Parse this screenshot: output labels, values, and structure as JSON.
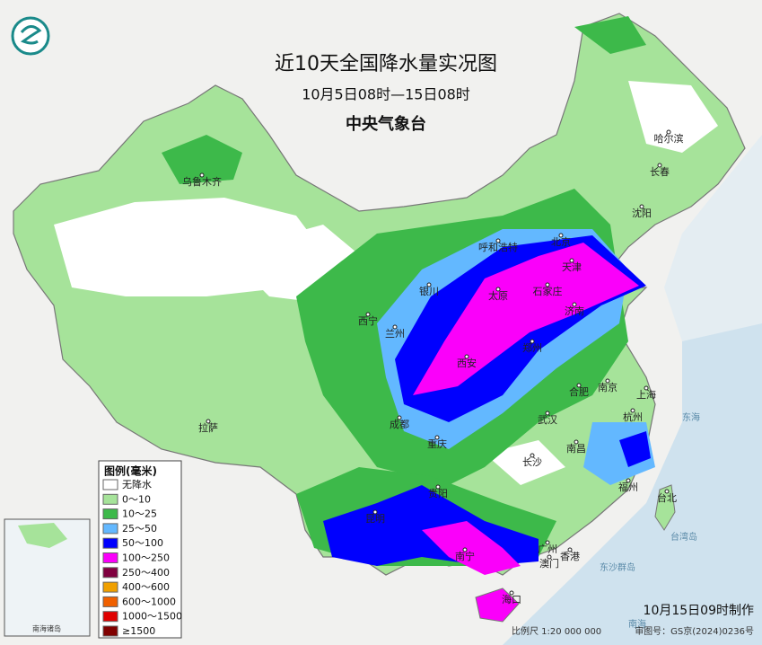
{
  "header": {
    "title": "近10天全国降水量实况图",
    "subtitle": "10月5日08时—15日08时",
    "agency": "中央气象台"
  },
  "legend": {
    "title": "图例(毫米)",
    "items": [
      {
        "label": "无降水",
        "color": "#ffffff"
      },
      {
        "label": "0～10",
        "color": "#a6e39a"
      },
      {
        "label": "10～25",
        "color": "#3db94a"
      },
      {
        "label": "25～50",
        "color": "#63b8ff"
      },
      {
        "label": "50～100",
        "color": "#0000fe"
      },
      {
        "label": "100～250",
        "color": "#fa00fa"
      },
      {
        "label": "250～400",
        "color": "#800040"
      },
      {
        "label": "400～600",
        "color": "#f0a000"
      },
      {
        "label": "600～1000",
        "color": "#f06000"
      },
      {
        "label": "1000～1500",
        "color": "#e00000"
      },
      {
        "label": "≥1500",
        "color": "#800000"
      }
    ]
  },
  "cities": [
    "乌鲁木齐",
    "哈尔滨",
    "长春",
    "沈阳",
    "呼和浩特",
    "北京",
    "天津",
    "银川",
    "太原",
    "石家庄",
    "济南",
    "西宁",
    "兰州",
    "郑州",
    "西安",
    "合肥",
    "南京",
    "上海",
    "成都",
    "武汉",
    "杭州",
    "拉萨",
    "重庆",
    "长沙",
    "南昌",
    "福州",
    "贵阳",
    "台北",
    "昆明",
    "南宁",
    "广州",
    "香港",
    "澳门",
    "海口"
  ],
  "seas": [
    "东海",
    "台湾岛",
    "东沙群岛",
    "南海"
  ],
  "inset": {
    "label": "南海诸岛"
  },
  "footer": {
    "issued": "10月15日09时制作",
    "scale": "比例尺 1:20 000 000",
    "review": "审图号：GS京(2024)0236号"
  }
}
